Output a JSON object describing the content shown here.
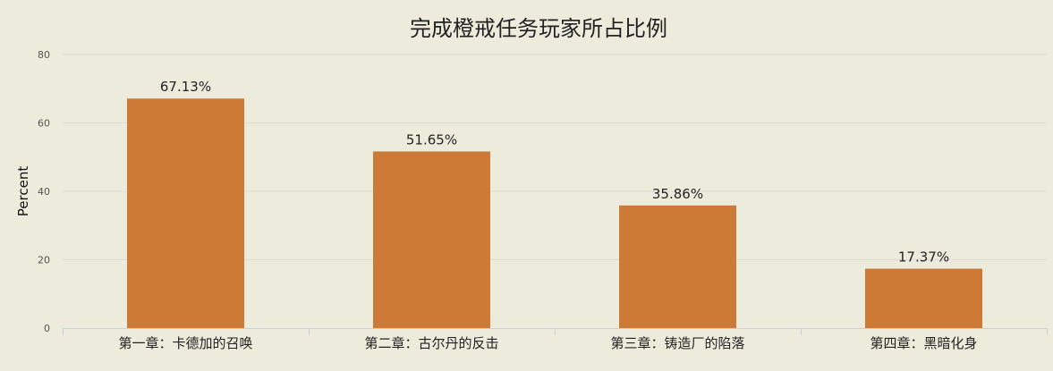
{
  "chart_data": {
    "type": "bar",
    "title": "完成橙戒任务玩家所占比例",
    "xlabel": "",
    "ylabel": "Percent",
    "categories": [
      "第一章：卡德加的召唤",
      "第二章：古尔丹的反击",
      "第三章：铸造厂的陷落",
      "第四章：黑暗化身"
    ],
    "values": [
      67.13,
      51.65,
      35.86,
      17.37
    ],
    "data_labels": [
      "67.13%",
      "51.65%",
      "35.86%",
      "17.37%"
    ],
    "ylim": [
      0,
      80
    ],
    "yticks": [
      0,
      20,
      40,
      60,
      80
    ],
    "grid": true,
    "legend": "none",
    "colors": {
      "bar": "#cc7a35",
      "background": "#ecebdc",
      "grid": "#dcdbd0",
      "axis": "#c7d0d8",
      "text": "#222222",
      "tick_text": "#555555"
    }
  }
}
